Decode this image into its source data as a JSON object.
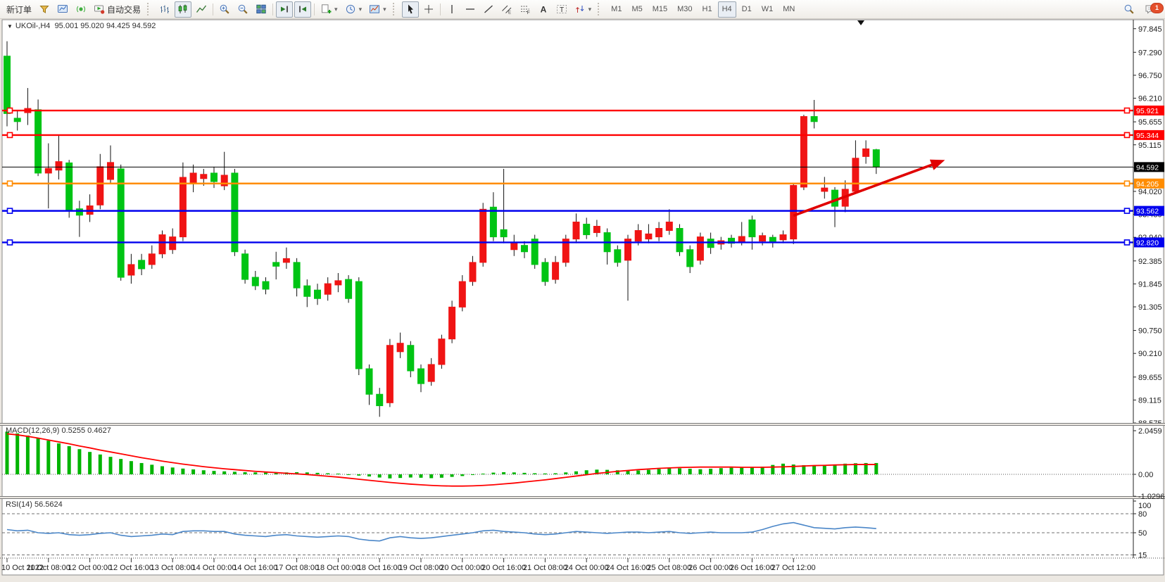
{
  "toolbar": {
    "notification_badge": "1",
    "groups": [
      {
        "items": [
          {
            "name": "new-order-button",
            "label": "新订单"
          },
          {
            "name": "order-ticket-icon-button",
            "icon": "ticket"
          },
          {
            "name": "charts-window-button",
            "icon": "charts"
          },
          {
            "name": "signal-button",
            "icon": "signal"
          },
          {
            "name": "autotrading-button",
            "icon": "autotrading",
            "label": "自动交易"
          }
        ]
      },
      {
        "items": [
          {
            "name": "bar-chart-button",
            "icon": "bars"
          },
          {
            "name": "candlestick-chart-button",
            "icon": "candles",
            "active": true
          },
          {
            "name": "line-chart-button",
            "icon": "line"
          },
          {
            "sep": true
          },
          {
            "name": "zoom-in-button",
            "icon": "zoomin"
          },
          {
            "name": "zoom-out-button",
            "icon": "zoomout"
          },
          {
            "name": "tile-windows-button",
            "icon": "tile"
          },
          {
            "sep": true
          },
          {
            "name": "auto-scroll-button",
            "icon": "autoscroll",
            "active": true
          },
          {
            "name": "chart-shift-button",
            "icon": "shift",
            "active": true
          },
          {
            "sep": true
          },
          {
            "name": "new-chart-button",
            "icon": "newchart",
            "dropdown": true
          },
          {
            "name": "period-button",
            "icon": "period",
            "dropdown": true
          },
          {
            "name": "template-button",
            "icon": "template",
            "dropdown": true
          }
        ]
      },
      {
        "items": [
          {
            "name": "cursor-button",
            "icon": "cursor",
            "active": true
          },
          {
            "name": "crosshair-button",
            "icon": "crosshair"
          },
          {
            "sep": true
          },
          {
            "name": "vertical-line-button",
            "icon": "vline"
          },
          {
            "name": "horizontal-line-button",
            "icon": "hline"
          },
          {
            "name": "trendline-button",
            "icon": "trend"
          },
          {
            "name": "channel-button",
            "icon": "channel"
          },
          {
            "name": "fibonacci-button",
            "icon": "fibo"
          },
          {
            "name": "text-button",
            "icon": "text"
          },
          {
            "name": "label-button",
            "icon": "label"
          },
          {
            "name": "arrows-button",
            "icon": "arrows",
            "dropdown": true
          }
        ]
      },
      {
        "items": [
          {
            "name": "tf-m1-button",
            "label": "M1",
            "tf": true
          },
          {
            "name": "tf-m5-button",
            "label": "M5",
            "tf": true
          },
          {
            "name": "tf-m15-button",
            "label": "M15",
            "tf": true
          },
          {
            "name": "tf-m30-button",
            "label": "M30",
            "tf": true
          },
          {
            "name": "tf-h1-button",
            "label": "H1",
            "tf": true
          },
          {
            "name": "tf-h4-button",
            "label": "H4",
            "tf": true,
            "active": true
          },
          {
            "name": "tf-d1-button",
            "label": "D1",
            "tf": true
          },
          {
            "name": "tf-w1-button",
            "label": "W1",
            "tf": true
          },
          {
            "name": "tf-mn-button",
            "label": "MN",
            "tf": true
          }
        ]
      }
    ]
  },
  "chart": {
    "title_symbol": "UKOil-,H4",
    "title_ohlc": "95.001 95.020 94.425 94.592"
  },
  "colors": {
    "bull_candle": "#f01414",
    "bear_candle": "#00c414",
    "wick": "#111111",
    "macd_hist": "#00b400",
    "macd_signal": "#ff0000",
    "rsi_line": "#4a86c8",
    "level_red": "#ff0000",
    "level_orange": "#ff8c00",
    "level_blue": "#0000ee",
    "current_price": "#000000",
    "arrow": "#e00000"
  },
  "chart_data": {
    "type": "candlestick",
    "symbol": "UKOil-",
    "timeframe": "H4",
    "y_axis_ticks": [
      "97.845",
      "97.290",
      "96.750",
      "96.210",
      "95.655",
      "95.115",
      "94.575",
      "94.020",
      "93.480",
      "92.940",
      "92.385",
      "91.845",
      "91.305",
      "90.750",
      "90.210",
      "89.655",
      "89.115",
      "88.575"
    ],
    "x_axis_labels": [
      "10 Oct 2022",
      "11 Oct 08:00",
      "12 Oct 00:00",
      "12 Oct 16:00",
      "13 Oct 08:00",
      "14 Oct 00:00",
      "14 Oct 16:00",
      "17 Oct 08:00",
      "18 Oct 00:00",
      "18 Oct 16:00",
      "19 Oct 08:00",
      "20 Oct 00:00",
      "20 Oct 16:00",
      "21 Oct 08:00",
      "24 Oct 00:00",
      "24 Oct 16:00",
      "25 Oct 08:00",
      "26 Oct 00:00",
      "26 Oct 16:00",
      "27 Oct 12:00"
    ],
    "bars_per_x_label": 4,
    "candles_hi_top_bot_lo_color": [
      [
        97.55,
        97.2,
        95.85,
        95.55,
        "g"
      ],
      [
        95.92,
        95.74,
        95.66,
        95.45,
        "g"
      ],
      [
        96.45,
        95.97,
        95.87,
        95.58,
        "r"
      ],
      [
        96.18,
        95.94,
        94.45,
        94.38,
        "g"
      ],
      [
        95.15,
        94.56,
        94.45,
        93.62,
        "r"
      ],
      [
        95.35,
        94.72,
        94.52,
        94.3,
        "r"
      ],
      [
        94.76,
        94.69,
        93.56,
        93.4,
        "g"
      ],
      [
        93.8,
        93.61,
        93.46,
        92.95,
        "g"
      ],
      [
        93.95,
        93.68,
        93.48,
        93.3,
        "r"
      ],
      [
        94.9,
        94.6,
        93.7,
        93.6,
        "r"
      ],
      [
        95.1,
        94.7,
        94.3,
        94.2,
        "r"
      ],
      [
        94.65,
        94.55,
        92.0,
        91.92,
        "g"
      ],
      [
        92.55,
        92.3,
        92.05,
        91.85,
        "r"
      ],
      [
        92.55,
        92.4,
        92.2,
        92.05,
        "g"
      ],
      [
        92.75,
        92.55,
        92.3,
        92.2,
        "r"
      ],
      [
        93.1,
        93.0,
        92.55,
        92.45,
        "r"
      ],
      [
        93.15,
        92.95,
        92.65,
        92.55,
        "r"
      ],
      [
        94.7,
        94.35,
        92.95,
        92.85,
        "r"
      ],
      [
        94.65,
        94.45,
        94.2,
        94.0,
        "r"
      ],
      [
        94.55,
        94.42,
        94.32,
        94.15,
        "r"
      ],
      [
        94.6,
        94.45,
        94.25,
        94.1,
        "g"
      ],
      [
        94.95,
        94.4,
        94.15,
        94.05,
        "r"
      ],
      [
        94.55,
        94.45,
        92.6,
        92.5,
        "g"
      ],
      [
        92.65,
        92.55,
        91.95,
        91.85,
        "g"
      ],
      [
        92.15,
        92.0,
        91.8,
        91.7,
        "g"
      ],
      [
        92.0,
        91.9,
        91.72,
        91.6,
        "g"
      ],
      [
        92.6,
        92.35,
        92.26,
        91.95,
        "g"
      ],
      [
        92.7,
        92.44,
        92.35,
        92.2,
        "r"
      ],
      [
        92.45,
        92.35,
        91.75,
        91.55,
        "g"
      ],
      [
        91.95,
        91.8,
        91.55,
        91.3,
        "g"
      ],
      [
        91.85,
        91.7,
        91.5,
        91.35,
        "g"
      ],
      [
        92.0,
        91.85,
        91.6,
        91.45,
        "r"
      ],
      [
        92.1,
        91.92,
        91.82,
        91.65,
        "r"
      ],
      [
        92.05,
        91.95,
        91.5,
        91.4,
        "g"
      ],
      [
        92.0,
        91.9,
        89.85,
        89.7,
        "g"
      ],
      [
        89.95,
        89.85,
        89.25,
        89.0,
        "g"
      ],
      [
        89.4,
        89.25,
        88.98,
        88.72,
        "g"
      ],
      [
        90.55,
        90.4,
        89.05,
        88.95,
        "r"
      ],
      [
        90.7,
        90.45,
        90.25,
        90.1,
        "r"
      ],
      [
        90.5,
        90.4,
        89.8,
        89.65,
        "g"
      ],
      [
        89.95,
        89.85,
        89.5,
        89.3,
        "g"
      ],
      [
        90.1,
        89.95,
        89.55,
        89.45,
        "r"
      ],
      [
        90.65,
        90.55,
        89.95,
        89.85,
        "r"
      ],
      [
        91.45,
        91.3,
        90.55,
        90.45,
        "r"
      ],
      [
        92.05,
        91.9,
        91.3,
        91.2,
        "r"
      ],
      [
        92.5,
        92.35,
        91.9,
        91.8,
        "r"
      ],
      [
        93.75,
        93.6,
        92.35,
        92.25,
        "r"
      ],
      [
        94.0,
        93.65,
        92.95,
        92.85,
        "g"
      ],
      [
        94.55,
        93.12,
        92.95,
        92.8,
        "g"
      ],
      [
        93.0,
        92.8,
        92.65,
        92.5,
        "r"
      ],
      [
        92.85,
        92.75,
        92.6,
        92.45,
        "g"
      ],
      [
        93.0,
        92.9,
        92.3,
        92.2,
        "g"
      ],
      [
        92.45,
        92.35,
        91.9,
        91.8,
        "g"
      ],
      [
        92.5,
        92.35,
        91.95,
        91.85,
        "r"
      ],
      [
        93.0,
        92.9,
        92.35,
        92.25,
        "r"
      ],
      [
        93.5,
        93.3,
        92.9,
        92.8,
        "r"
      ],
      [
        93.4,
        93.25,
        93.0,
        92.9,
        "g"
      ],
      [
        93.35,
        93.2,
        93.05,
        92.95,
        "r"
      ],
      [
        93.15,
        93.05,
        92.6,
        92.3,
        "g"
      ],
      [
        92.75,
        92.65,
        92.35,
        92.25,
        "g"
      ],
      [
        93.0,
        92.9,
        92.4,
        91.45,
        "r"
      ],
      [
        93.25,
        93.1,
        92.85,
        92.75,
        "r"
      ],
      [
        93.25,
        93.02,
        92.9,
        92.8,
        "r"
      ],
      [
        93.3,
        93.15,
        92.95,
        92.85,
        "r"
      ],
      [
        93.6,
        93.3,
        93.1,
        93.0,
        "r"
      ],
      [
        93.25,
        93.15,
        92.6,
        92.5,
        "g"
      ],
      [
        92.75,
        92.65,
        92.25,
        92.1,
        "g"
      ],
      [
        93.05,
        92.95,
        92.4,
        92.3,
        "r"
      ],
      [
        93.05,
        92.9,
        92.7,
        92.55,
        "g"
      ],
      [
        92.95,
        92.86,
        92.78,
        92.65,
        "r"
      ],
      [
        93.0,
        92.92,
        92.8,
        92.7,
        "g"
      ],
      [
        93.3,
        92.96,
        92.82,
        92.75,
        "r"
      ],
      [
        93.45,
        93.35,
        92.95,
        92.65,
        "g"
      ],
      [
        93.05,
        92.98,
        92.85,
        92.75,
        "r"
      ],
      [
        93.0,
        92.94,
        92.84,
        92.7,
        "g"
      ],
      [
        93.1,
        93.0,
        92.88,
        92.8,
        "r"
      ],
      [
        94.2,
        94.16,
        92.9,
        92.78,
        "r"
      ],
      [
        95.82,
        95.78,
        94.12,
        94.05,
        "r"
      ],
      [
        96.17,
        95.78,
        95.66,
        95.5,
        "g"
      ],
      [
        94.36,
        94.1,
        94.02,
        93.85,
        "r"
      ],
      [
        94.12,
        94.05,
        93.67,
        93.18,
        "g"
      ],
      [
        94.28,
        94.07,
        93.67,
        93.53,
        "r"
      ],
      [
        95.22,
        94.8,
        94.02,
        93.97,
        "r"
      ],
      [
        95.22,
        95.02,
        94.84,
        94.67,
        "r"
      ],
      [
        95.02,
        95.0,
        94.59,
        94.43,
        "g"
      ]
    ],
    "hlines": [
      {
        "price": 95.921,
        "label": "95.921",
        "color_key": "level_red"
      },
      {
        "price": 95.344,
        "label": "95.344",
        "color_key": "level_red"
      },
      {
        "price": 94.205,
        "label": "94.205",
        "color_key": "level_orange"
      },
      {
        "price": 93.562,
        "label": "93.562",
        "color_key": "level_blue"
      },
      {
        "price": 92.82,
        "label": "92.820",
        "color_key": "level_blue"
      }
    ],
    "current_price": {
      "price": 94.592,
      "label": "94.592"
    },
    "trend_arrow": {
      "from_bar": 76,
      "from_price": 93.45,
      "to_bar": 90,
      "to_price": 94.7
    },
    "macd": {
      "label": "MACD(12,26,9)",
      "values_text": "0.5255 0.4627",
      "axis_labels": [
        {
          "v": 2.0459,
          "t": "2.0459"
        },
        {
          "v": 0.0,
          "t": "0.00"
        },
        {
          "v": -1.0296,
          "t": "-1.0296"
        }
      ],
      "histogram": [
        2.0,
        1.92,
        1.82,
        1.7,
        1.58,
        1.45,
        1.32,
        1.18,
        1.05,
        0.93,
        0.82,
        0.72,
        0.62,
        0.53,
        0.45,
        0.38,
        0.32,
        0.27,
        0.23,
        0.19,
        0.16,
        0.14,
        0.12,
        0.1,
        0.09,
        0.08,
        0.08,
        0.09,
        0.1,
        0.09,
        0.07,
        0.05,
        0.02,
        -0.02,
        -0.06,
        -0.1,
        -0.15,
        -0.19,
        -0.17,
        -0.15,
        -0.16,
        -0.18,
        -0.16,
        -0.12,
        -0.08,
        -0.03,
        0.03,
        0.08,
        0.1,
        0.09,
        0.07,
        0.05,
        0.04,
        0.05,
        0.09,
        0.14,
        0.19,
        0.22,
        0.21,
        0.19,
        0.17,
        0.18,
        0.21,
        0.25,
        0.29,
        0.28,
        0.26,
        0.24,
        0.26,
        0.29,
        0.31,
        0.31,
        0.33,
        0.36,
        0.44,
        0.5,
        0.46,
        0.43,
        0.41,
        0.43,
        0.46,
        0.5,
        0.52,
        0.53,
        0.53
      ],
      "signal": [
        1.9,
        1.85,
        1.78,
        1.7,
        1.61,
        1.52,
        1.43,
        1.33,
        1.24,
        1.14,
        1.05,
        0.96,
        0.87,
        0.78,
        0.7,
        0.62,
        0.55,
        0.48,
        0.42,
        0.36,
        0.31,
        0.26,
        0.22,
        0.18,
        0.14,
        0.11,
        0.08,
        0.05,
        0.02,
        -0.01,
        -0.05,
        -0.09,
        -0.13,
        -0.18,
        -0.23,
        -0.28,
        -0.33,
        -0.38,
        -0.42,
        -0.46,
        -0.49,
        -0.52,
        -0.54,
        -0.55,
        -0.55,
        -0.54,
        -0.52,
        -0.49,
        -0.45,
        -0.41,
        -0.36,
        -0.31,
        -0.26,
        -0.2,
        -0.14,
        -0.08,
        -0.02,
        0.04,
        0.09,
        0.14,
        0.18,
        0.22,
        0.25,
        0.28,
        0.3,
        0.32,
        0.33,
        0.34,
        0.34,
        0.34,
        0.34,
        0.33,
        0.33,
        0.33,
        0.34,
        0.35,
        0.37,
        0.39,
        0.41,
        0.42,
        0.44,
        0.45,
        0.46,
        0.46,
        0.46
      ]
    },
    "rsi": {
      "label": "RSI(14)",
      "value_text": "56.5624",
      "axis_labels": [
        {
          "v": 100,
          "t": "100"
        },
        {
          "v": 80,
          "t": "80"
        },
        {
          "v": 50,
          "t": "50"
        },
        {
          "v": 15,
          "t": "15"
        }
      ],
      "levels": [
        80,
        50,
        15
      ],
      "values": [
        55,
        53,
        54,
        50,
        49,
        50,
        47,
        46,
        47,
        49,
        50,
        46,
        44,
        45,
        46,
        48,
        47,
        52,
        53,
        53,
        52,
        52,
        48,
        46,
        45,
        44,
        46,
        47,
        45,
        44,
        43,
        44,
        45,
        44,
        40,
        38,
        37,
        42,
        44,
        42,
        41,
        42,
        44,
        46,
        48,
        50,
        53,
        54,
        52,
        51,
        50,
        48,
        47,
        48,
        50,
        52,
        51,
        50,
        49,
        50,
        51,
        51,
        50,
        51,
        52,
        50,
        49,
        50,
        51,
        50,
        50,
        50,
        51,
        55,
        60,
        64,
        66,
        62,
        58,
        57,
        56,
        58,
        59,
        58,
        56.6
      ]
    }
  }
}
